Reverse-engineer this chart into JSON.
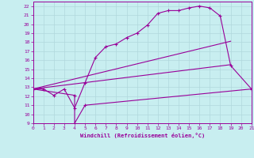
{
  "xlabel": "Windchill (Refroidissement éolien,°C)",
  "bg_color": "#c8eef0",
  "grid_color": "#b0d8dc",
  "line_color": "#990099",
  "xlim": [
    0,
    21
  ],
  "ylim": [
    9,
    22.5
  ],
  "xticks": [
    0,
    1,
    2,
    3,
    4,
    5,
    6,
    7,
    8,
    9,
    10,
    11,
    12,
    13,
    14,
    15,
    16,
    17,
    18,
    19,
    20,
    21
  ],
  "yticks": [
    9,
    10,
    11,
    12,
    13,
    14,
    15,
    16,
    17,
    18,
    19,
    20,
    21,
    22
  ],
  "line1_x": [
    0,
    1,
    2,
    3,
    4,
    5,
    6,
    7,
    8,
    9,
    10,
    11,
    12,
    13,
    14,
    15,
    16,
    17,
    18,
    19,
    21
  ],
  "line1_y": [
    12.8,
    12.8,
    12.1,
    12.8,
    10.7,
    13.5,
    16.3,
    17.5,
    17.8,
    18.5,
    19.0,
    19.9,
    21.2,
    21.5,
    21.5,
    21.8,
    22.0,
    21.8,
    20.9,
    15.4,
    12.8
  ],
  "line2_x": [
    0,
    19
  ],
  "line2_y": [
    12.8,
    18.1
  ],
  "line3_x": [
    0,
    19
  ],
  "line3_y": [
    12.8,
    15.5
  ],
  "line4_x": [
    0,
    4,
    4,
    5,
    21
  ],
  "line4_y": [
    12.8,
    12.1,
    9.0,
    11.0,
    12.8
  ]
}
